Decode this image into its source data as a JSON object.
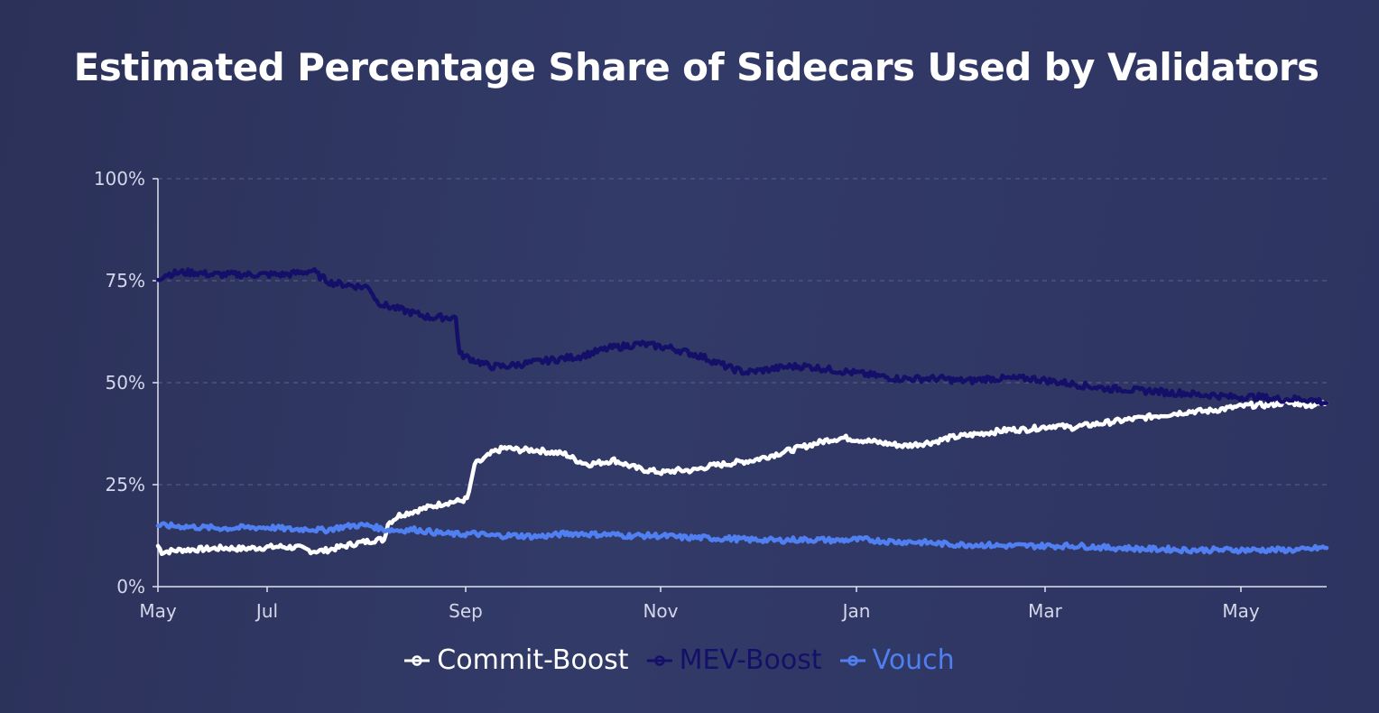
{
  "title": "Estimated Percentage Share of Sidecars Used by Validators",
  "colors": {
    "commit_boost": "#ffffff",
    "mev_boost": "#14106a",
    "vouch": "#4f7ff0",
    "grid": "#5a6190",
    "axis": "#dfe2f0"
  },
  "chart_data": {
    "type": "line",
    "title": "Estimated Percentage Share of Sidecars Used by Validators",
    "xlabel": "",
    "ylabel": "",
    "x_tick_labels": [
      "May",
      "Jul",
      "Sep",
      "Nov",
      "Jan",
      "Mar",
      "May"
    ],
    "x_tick_months": [
      0,
      2,
      4,
      6,
      8,
      10,
      12
    ],
    "x_range_months": [
      0,
      12.45
    ],
    "y_tick_labels": [
      "0%",
      "25%",
      "50%",
      "75%",
      "100%"
    ],
    "y_tick_values": [
      0,
      25,
      50,
      75,
      100
    ],
    "ylim": [
      0,
      100
    ],
    "grid": "horizontal dashed",
    "legend_position": "bottom-center",
    "series": [
      {
        "name": "Commit-Boost",
        "points": [
          [
            0,
            10
          ],
          [
            0.05,
            8.5
          ],
          [
            0.3,
            9
          ],
          [
            0.6,
            9.2
          ],
          [
            0.9,
            9.5
          ],
          [
            1.1,
            9.3
          ],
          [
            1.4,
            9.6
          ],
          [
            1.6,
            9.8
          ],
          [
            1.85,
            9.6
          ],
          [
            2.05,
            8.7
          ],
          [
            2.2,
            8.8
          ],
          [
            2.4,
            9.6
          ],
          [
            2.6,
            10.5
          ],
          [
            2.9,
            11.5
          ],
          [
            3.0,
            11.5
          ],
          [
            3.05,
            15.5
          ],
          [
            3.2,
            17.5
          ],
          [
            3.4,
            18.5
          ],
          [
            3.6,
            19.5
          ],
          [
            3.8,
            20.5
          ],
          [
            4.0,
            21
          ],
          [
            4.1,
            21.5
          ],
          [
            4.15,
            25
          ],
          [
            4.2,
            30
          ],
          [
            4.3,
            31
          ],
          [
            4.45,
            33
          ],
          [
            4.6,
            34
          ],
          [
            4.8,
            33.5
          ],
          [
            5.0,
            33.5
          ],
          [
            5.2,
            33
          ],
          [
            5.4,
            32.5
          ],
          [
            5.55,
            31
          ],
          [
            5.7,
            30
          ],
          [
            5.9,
            30.5
          ],
          [
            6.05,
            31
          ],
          [
            6.2,
            30
          ],
          [
            6.35,
            29
          ],
          [
            6.5,
            28.5
          ],
          [
            6.7,
            28
          ],
          [
            6.9,
            28.5
          ],
          [
            7.1,
            28.5
          ],
          [
            7.3,
            29.5
          ],
          [
            7.5,
            30
          ],
          [
            7.7,
            30.5
          ],
          [
            7.9,
            31
          ],
          [
            8.1,
            32
          ],
          [
            8.3,
            33
          ],
          [
            8.5,
            34
          ],
          [
            8.7,
            35
          ],
          [
            8.9,
            36
          ],
          [
            9.1,
            36.5
          ],
          [
            9.3,
            36
          ],
          [
            9.5,
            35.5
          ],
          [
            9.7,
            35
          ],
          [
            9.9,
            34.5
          ],
          [
            10.1,
            35
          ],
          [
            10.3,
            35.5
          ],
          [
            10.5,
            36.5
          ],
          [
            10.7,
            37
          ],
          [
            10.9,
            37.5
          ],
          [
            11.1,
            38
          ],
          [
            11.3,
            38.5
          ],
          [
            11.5,
            38.5
          ],
          [
            11.7,
            39
          ],
          [
            11.9,
            39.5
          ],
          [
            12.1,
            39
          ],
          [
            12.3,
            39.5
          ],
          [
            12.5,
            40
          ],
          [
            12.7,
            40.5
          ],
          [
            12.9,
            41
          ],
          [
            13.1,
            41.5
          ],
          [
            13.3,
            42
          ],
          [
            13.5,
            42.5
          ],
          [
            13.7,
            43
          ],
          [
            13.9,
            43
          ],
          [
            14.1,
            43.5
          ],
          [
            14.3,
            44
          ],
          [
            14.5,
            44.5
          ],
          [
            14.7,
            44.5
          ],
          [
            14.9,
            45
          ],
          [
            15.1,
            45
          ],
          [
            15.3,
            44.5
          ],
          [
            15.5,
            45
          ]
        ]
      },
      {
        "name": "MEV-Boost",
        "points": [
          [
            0,
            75.5
          ],
          [
            0.1,
            76.5
          ],
          [
            0.3,
            77
          ],
          [
            0.5,
            77
          ],
          [
            0.7,
            76.5
          ],
          [
            0.9,
            76.5
          ],
          [
            1.1,
            76.5
          ],
          [
            1.3,
            76.5
          ],
          [
            1.5,
            76.5
          ],
          [
            1.7,
            76.5
          ],
          [
            1.9,
            77
          ],
          [
            2.05,
            77.5
          ],
          [
            2.15,
            76
          ],
          [
            2.3,
            74.5
          ],
          [
            2.5,
            74
          ],
          [
            2.7,
            73.5
          ],
          [
            2.8,
            73.5
          ],
          [
            2.9,
            70
          ],
          [
            3.0,
            69
          ],
          [
            3.2,
            68
          ],
          [
            3.4,
            67
          ],
          [
            3.6,
            66
          ],
          [
            3.8,
            66
          ],
          [
            3.95,
            66
          ],
          [
            4.0,
            57
          ],
          [
            4.2,
            55.5
          ],
          [
            4.4,
            54
          ],
          [
            4.6,
            54
          ],
          [
            4.8,
            54.5
          ],
          [
            5.0,
            55
          ],
          [
            5.2,
            55.5
          ],
          [
            5.4,
            56
          ],
          [
            5.6,
            56.5
          ],
          [
            5.8,
            57.5
          ],
          [
            6.0,
            58.5
          ],
          [
            6.2,
            59
          ],
          [
            6.4,
            59.5
          ],
          [
            6.6,
            59
          ],
          [
            6.8,
            58.5
          ],
          [
            7.0,
            57.5
          ],
          [
            7.2,
            56.5
          ],
          [
            7.4,
            55
          ],
          [
            7.6,
            53.5
          ],
          [
            7.8,
            52.5
          ],
          [
            8.0,
            53
          ],
          [
            8.2,
            53.5
          ],
          [
            8.4,
            54
          ],
          [
            8.6,
            54
          ],
          [
            8.8,
            53.5
          ],
          [
            9.0,
            53
          ],
          [
            9.2,
            52.5
          ],
          [
            9.4,
            52
          ],
          [
            9.6,
            51.5
          ],
          [
            9.8,
            51
          ],
          [
            10.0,
            51
          ],
          [
            10.2,
            51
          ],
          [
            10.4,
            51
          ],
          [
            10.6,
            50.5
          ],
          [
            10.8,
            50.5
          ],
          [
            11.0,
            51
          ],
          [
            11.2,
            51
          ],
          [
            11.4,
            51
          ],
          [
            11.6,
            51
          ],
          [
            11.8,
            50.5
          ],
          [
            12.0,
            50
          ],
          [
            12.2,
            49.5
          ],
          [
            12.4,
            49
          ],
          [
            12.6,
            48.5
          ],
          [
            12.8,
            48.5
          ],
          [
            13.0,
            48
          ],
          [
            13.2,
            48
          ],
          [
            13.4,
            47.5
          ],
          [
            13.6,
            47.5
          ],
          [
            13.8,
            47
          ],
          [
            14.0,
            47
          ],
          [
            14.2,
            46.5
          ],
          [
            14.4,
            46.5
          ],
          [
            14.6,
            46.5
          ],
          [
            14.8,
            46
          ],
          [
            15.0,
            46
          ],
          [
            15.2,
            46
          ],
          [
            15.4,
            45.5
          ],
          [
            15.5,
            45
          ]
        ]
      },
      {
        "name": "Vouch",
        "points": [
          [
            0,
            15
          ],
          [
            0.3,
            14.8
          ],
          [
            0.6,
            14.5
          ],
          [
            0.9,
            14.3
          ],
          [
            1.2,
            14.5
          ],
          [
            1.5,
            14.5
          ],
          [
            1.8,
            14
          ],
          [
            2.0,
            14.2
          ],
          [
            2.2,
            13.8
          ],
          [
            2.4,
            14.5
          ],
          [
            2.6,
            15
          ],
          [
            2.8,
            15
          ],
          [
            3.0,
            14
          ],
          [
            3.2,
            13.8
          ],
          [
            3.4,
            14
          ],
          [
            3.6,
            13.5
          ],
          [
            3.8,
            13
          ],
          [
            4.0,
            12.8
          ],
          [
            4.2,
            13
          ],
          [
            4.4,
            12.5
          ],
          [
            4.6,
            12.5
          ],
          [
            4.8,
            12.5
          ],
          [
            5.0,
            12.3
          ],
          [
            5.2,
            12.5
          ],
          [
            5.4,
            13
          ],
          [
            5.6,
            13
          ],
          [
            5.8,
            12.8
          ],
          [
            6.0,
            12.8
          ],
          [
            6.2,
            12.5
          ],
          [
            6.4,
            12.5
          ],
          [
            6.6,
            12.5
          ],
          [
            6.8,
            12.3
          ],
          [
            7.0,
            12
          ],
          [
            7.2,
            12
          ],
          [
            7.4,
            11.8
          ],
          [
            7.6,
            11.8
          ],
          [
            7.8,
            11.5
          ],
          [
            8.0,
            11.5
          ],
          [
            8.2,
            11.3
          ],
          [
            8.4,
            11.5
          ],
          [
            8.6,
            11.5
          ],
          [
            8.8,
            11.5
          ],
          [
            9.0,
            11.3
          ],
          [
            9.2,
            11.5
          ],
          [
            9.4,
            11.5
          ],
          [
            9.6,
            11.2
          ],
          [
            9.8,
            11
          ],
          [
            10.0,
            11
          ],
          [
            10.2,
            10.8
          ],
          [
            10.4,
            10.5
          ],
          [
            10.6,
            10.3
          ],
          [
            10.8,
            10.3
          ],
          [
            11.0,
            10.2
          ],
          [
            11.2,
            10
          ],
          [
            11.4,
            10
          ],
          [
            11.6,
            10
          ],
          [
            11.8,
            10
          ],
          [
            12.0,
            10
          ],
          [
            12.2,
            10
          ],
          [
            12.4,
            9.8
          ],
          [
            12.6,
            9.5
          ],
          [
            12.8,
            9.5
          ],
          [
            13.0,
            9.3
          ],
          [
            13.2,
            9.2
          ],
          [
            13.4,
            9.2
          ],
          [
            13.6,
            9
          ],
          [
            13.8,
            9
          ],
          [
            14.0,
            9
          ],
          [
            14.2,
            9
          ],
          [
            14.4,
            9
          ],
          [
            14.6,
            9
          ],
          [
            14.8,
            9
          ],
          [
            15.0,
            9
          ],
          [
            15.2,
            9
          ],
          [
            15.4,
            9.5
          ],
          [
            15.5,
            9.5
          ]
        ]
      }
    ]
  },
  "legend": {
    "items": [
      {
        "label": "Commit-Boost"
      },
      {
        "label": "MEV-Boost"
      },
      {
        "label": "Vouch"
      }
    ]
  }
}
